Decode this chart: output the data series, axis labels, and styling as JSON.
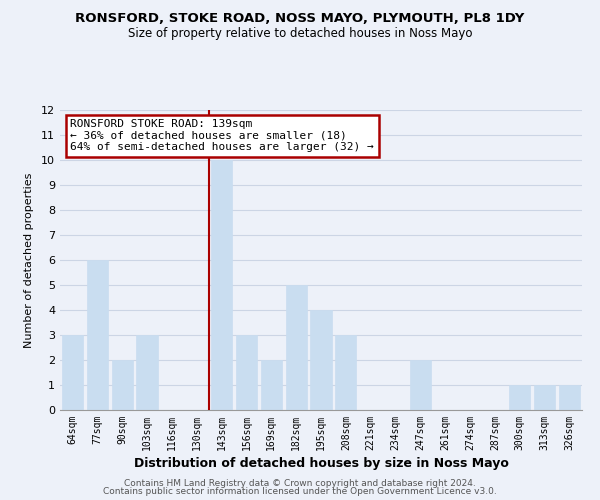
{
  "title": "RONSFORD, STOKE ROAD, NOSS MAYO, PLYMOUTH, PL8 1DY",
  "subtitle": "Size of property relative to detached houses in Noss Mayo",
  "xlabel": "Distribution of detached houses by size in Noss Mayo",
  "ylabel": "Number of detached properties",
  "categories": [
    "64sqm",
    "77sqm",
    "90sqm",
    "103sqm",
    "116sqm",
    "130sqm",
    "143sqm",
    "156sqm",
    "169sqm",
    "182sqm",
    "195sqm",
    "208sqm",
    "221sqm",
    "234sqm",
    "247sqm",
    "261sqm",
    "274sqm",
    "287sqm",
    "300sqm",
    "313sqm",
    "326sqm"
  ],
  "values": [
    3,
    6,
    2,
    3,
    0,
    0,
    10,
    3,
    2,
    5,
    4,
    3,
    0,
    0,
    2,
    0,
    0,
    0,
    1,
    1,
    1
  ],
  "bar_color": "#c9ddf0",
  "bar_edge_color": "#c9ddf0",
  "highlight_index": 6,
  "highlight_line_color": "#aa0000",
  "ylim": [
    0,
    12
  ],
  "yticks": [
    0,
    1,
    2,
    3,
    4,
    5,
    6,
    7,
    8,
    9,
    10,
    11,
    12
  ],
  "annotation_title": "RONSFORD STOKE ROAD: 139sqm",
  "annotation_line1": "← 36% of detached houses are smaller (18)",
  "annotation_line2": "64% of semi-detached houses are larger (32) →",
  "annotation_box_color": "#ffffff",
  "annotation_box_edge": "#aa0000",
  "footer_line1": "Contains HM Land Registry data © Crown copyright and database right 2024.",
  "footer_line2": "Contains public sector information licensed under the Open Government Licence v3.0.",
  "grid_color": "#ccd5e5",
  "background_color": "#edf1f9"
}
